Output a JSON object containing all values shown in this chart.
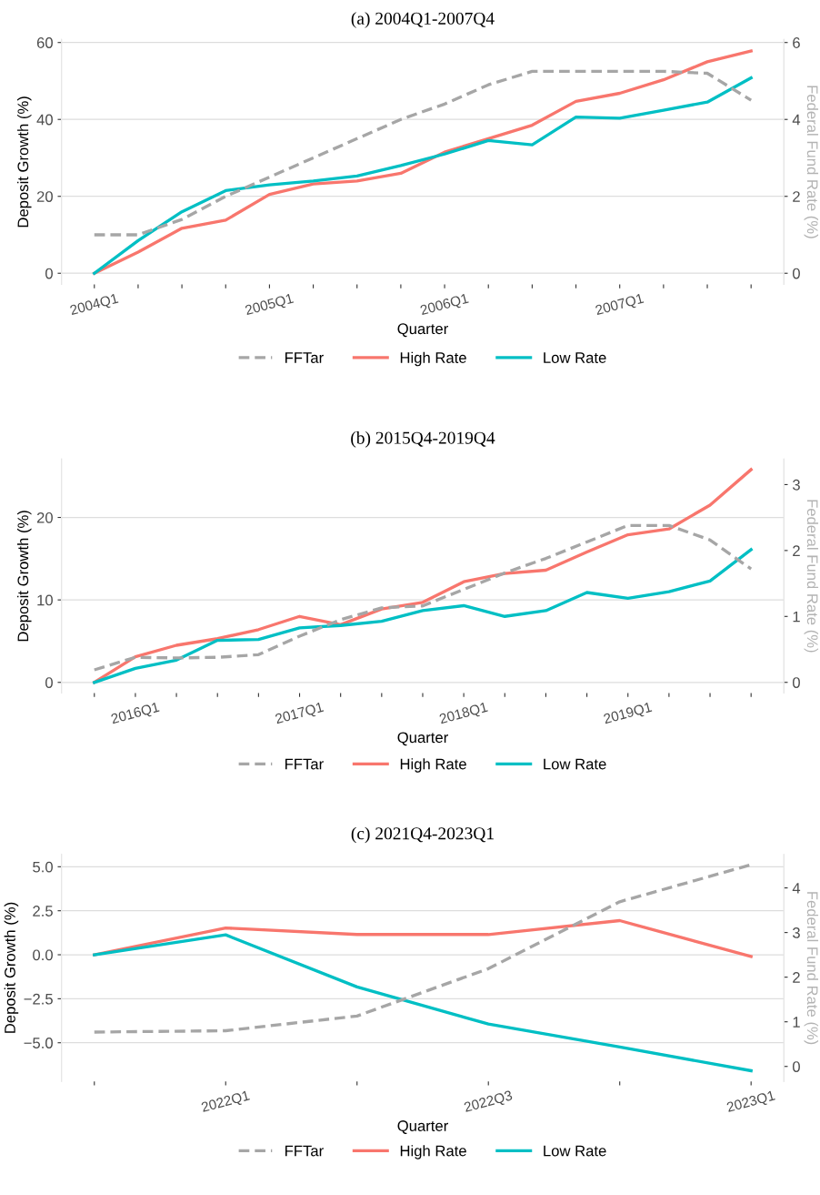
{
  "chart_data": [
    {
      "type": "line",
      "title": "(a) 2004Q1-2007Q4",
      "xlabel": "Quarter",
      "ylabel": "Deposit Growth (%)",
      "y2label": "Federal Fund Rate (%)",
      "categories": [
        "2004Q1",
        null,
        null,
        null,
        "2005Q1",
        null,
        null,
        null,
        "2006Q1",
        null,
        null,
        null,
        "2007Q1",
        null,
        null,
        null
      ],
      "series": [
        {
          "name": "FFTar",
          "color": "#a6a6a6",
          "axis": "y2",
          "line_style": "dashed",
          "values": [
            1.0,
            1.0,
            1.4,
            2.0,
            2.5,
            3.0,
            3.5,
            4.0,
            4.4,
            4.9,
            5.25,
            5.25,
            5.25,
            5.25,
            5.2,
            4.5
          ]
        },
        {
          "name": "High Rate",
          "color": "#f8766d",
          "values": [
            0,
            5.5,
            11.7,
            13.8,
            20.5,
            23.2,
            24.0,
            26.0,
            31.5,
            35.0,
            38.5,
            44.7,
            46.8,
            50.3,
            55.0,
            57.8
          ]
        },
        {
          "name": "Low Rate",
          "color": "#00bfc4",
          "values": [
            0,
            8.5,
            16.0,
            21.5,
            23.0,
            24.0,
            25.3,
            28.0,
            31.0,
            34.5,
            33.4,
            40.6,
            40.3,
            42.4,
            44.5,
            50.8
          ]
        }
      ],
      "ylim": [
        -2.9,
        60.8
      ],
      "yticks": [
        0,
        20,
        40,
        60
      ],
      "y2lim": [
        -0.29,
        6.08
      ],
      "y2ticks": [
        0,
        2,
        4,
        6
      ],
      "grid": "y",
      "legend": "bottom",
      "line_style": "solid"
    },
    {
      "type": "line",
      "title": "(b) 2015Q4-2019Q4",
      "xlabel": "Quarter",
      "ylabel": "Deposit Growth (%)",
      "y2label": "Federal Fund Rate (%)",
      "categories": [
        null,
        "2016Q1",
        null,
        null,
        null,
        "2017Q1",
        null,
        null,
        null,
        "2018Q1",
        null,
        null,
        null,
        "2019Q1",
        null,
        null,
        null
      ],
      "series": [
        {
          "name": "FFTar",
          "color": "#a6a6a6",
          "axis": "y2",
          "line_style": "dashed",
          "values": [
            0.19,
            0.38,
            0.37,
            0.38,
            0.42,
            0.7,
            0.95,
            1.13,
            1.16,
            1.41,
            1.66,
            1.88,
            2.13,
            2.38,
            2.38,
            2.16,
            1.72
          ]
        },
        {
          "name": "High Rate",
          "color": "#f8766d",
          "values": [
            0,
            3.1,
            4.5,
            5.3,
            6.4,
            8.0,
            7.0,
            8.9,
            9.7,
            12.2,
            13.2,
            13.6,
            15.8,
            17.9,
            18.6,
            21.5,
            25.8
          ]
        },
        {
          "name": "Low Rate",
          "color": "#00bfc4",
          "values": [
            0,
            1.7,
            2.7,
            5.1,
            5.2,
            6.6,
            6.9,
            7.4,
            8.7,
            9.3,
            8.0,
            8.7,
            10.9,
            10.2,
            11.0,
            12.3,
            16.1
          ]
        }
      ],
      "ylim": [
        -1.3,
        27.1
      ],
      "yticks": [
        0,
        10,
        20
      ],
      "y2lim": [
        -0.163,
        3.39
      ],
      "y2ticks": [
        0,
        1,
        2,
        3
      ],
      "grid": "y",
      "legend": "bottom",
      "line_style": "solid"
    },
    {
      "type": "line",
      "title": "(c) 2021Q4-2023Q1",
      "xlabel": "Quarter",
      "ylabel": "Deposit Growth (%)",
      "y2label": "Federal Fund Rate (%)",
      "categories": [
        null,
        "2022Q1",
        null,
        "2022Q3",
        null,
        "2023Q1"
      ],
      "series": [
        {
          "name": "FFTar",
          "color": "#a6a6a6",
          "axis": "y2",
          "line_style": "dashed",
          "values": [
            0.77,
            0.8,
            1.13,
            2.19,
            3.69,
            4.52
          ]
        },
        {
          "name": "High Rate",
          "color": "#f8766d",
          "values": [
            0,
            1.52,
            1.15,
            1.15,
            1.94,
            -0.1
          ]
        },
        {
          "name": "Low Rate",
          "color": "#00bfc4",
          "values": [
            0,
            1.13,
            -1.83,
            -3.94,
            -5.24,
            -6.59
          ]
        }
      ],
      "ylim": [
        -7.2,
        5.7
      ],
      "yticks": [
        {
          "value": -5,
          "label": "−5.0"
        },
        {
          "value": -2.5,
          "label": "−2.5"
        },
        {
          "value": 0,
          "label": "0.0"
        },
        {
          "value": 2.5,
          "label": "2.5"
        },
        {
          "value": 5,
          "label": "5.0"
        }
      ],
      "y2lim": [
        -0.337,
        4.75
      ],
      "y2ticks": [
        0,
        1,
        2,
        3,
        4
      ],
      "grid": "y",
      "legend": "bottom",
      "line_style": "solid"
    }
  ]
}
